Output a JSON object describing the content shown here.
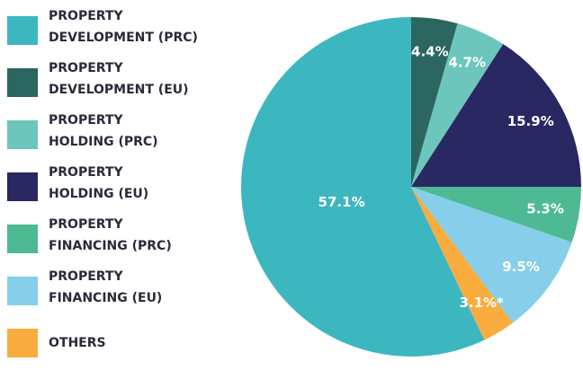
{
  "chart_data": {
    "type": "pie",
    "categories": [
      "PROPERTY\nDEVELOPMENT (PRC)",
      "PROPERTY\nDEVELOPMENT (EU)",
      "PROPERTY\nHOLDING (PRC)",
      "PROPERTY\nHOLDING (EU)",
      "PROPERTY\nFINANCING (PRC)",
      "PROPERTY\nFINANCING (EU)",
      "OTHERS"
    ],
    "values": [
      57.1,
      4.4,
      4.7,
      15.9,
      5.3,
      9.5,
      3.1
    ],
    "value_labels": [
      "57.1%",
      "4.4%",
      "4.7%",
      "15.9%",
      "5.3%",
      "9.5%",
      "3.1%*"
    ],
    "colors": [
      "#3db7bf",
      "#2c6660",
      "#6cc6bb",
      "#2a2862",
      "#4dba94",
      "#87ceea",
      "#f8ad3e"
    ],
    "legend": "left"
  }
}
